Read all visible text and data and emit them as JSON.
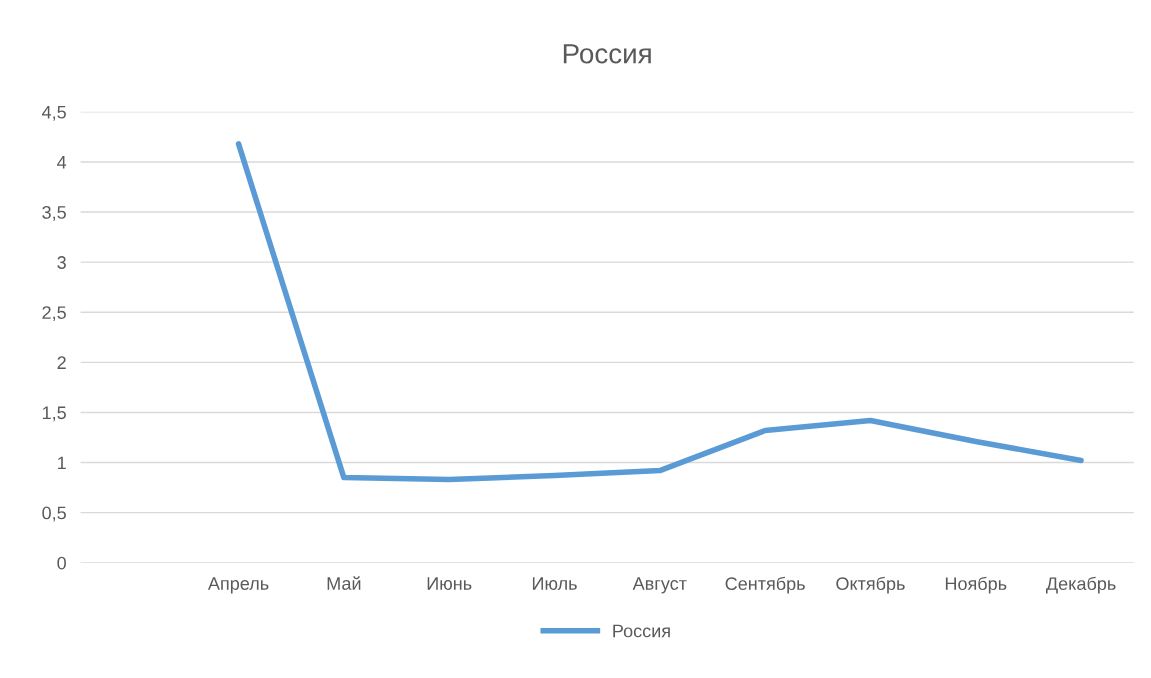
{
  "chart_data": {
    "type": "line",
    "title": "Россия",
    "categories": [
      null,
      "Апрель",
      "Май",
      "Июнь",
      "Июль",
      "Август",
      "Сентябрь",
      "Октябрь",
      "Ноябрь",
      "Декабрь"
    ],
    "series": [
      {
        "name": "Россия",
        "color": "#5b9bd5",
        "values": [
          null,
          4.18,
          0.85,
          0.83,
          0.87,
          0.92,
          1.32,
          1.42,
          1.21,
          1.02
        ]
      }
    ],
    "ylim": [
      0,
      4.5
    ],
    "yticks": [
      0,
      {
        "value": 0.5,
        "label": "0,5"
      },
      1,
      {
        "value": 1.5,
        "label": "1,5"
      },
      2,
      {
        "value": 2.5,
        "label": "2,5"
      },
      3,
      {
        "value": 3.5,
        "label": "3,5"
      },
      4,
      {
        "value": 4.5,
        "label": "4,5"
      }
    ],
    "grid": "y",
    "legend": "bottom",
    "marker": "none",
    "line_style": "solid"
  }
}
